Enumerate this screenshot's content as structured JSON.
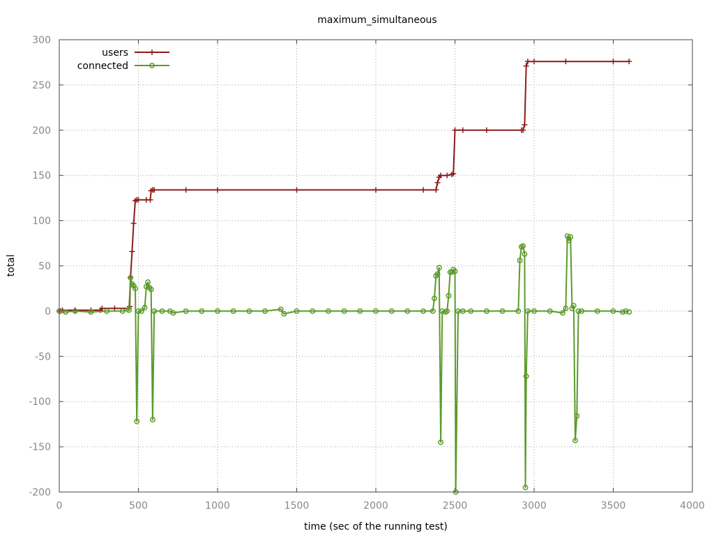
{
  "chart_data": {
    "type": "line",
    "title": "maximum_simultaneous",
    "xlabel": "time (sec of the running test)",
    "ylabel": "total",
    "xlim": [
      0,
      4000
    ],
    "ylim": [
      -200,
      300
    ],
    "x_ticks": [
      0,
      500,
      1000,
      1500,
      2000,
      2500,
      3000,
      3500,
      4000
    ],
    "y_ticks": [
      -200,
      -150,
      -100,
      -50,
      0,
      50,
      100,
      150,
      200,
      250,
      300
    ],
    "grid": true,
    "legend_position": "top-left",
    "series": [
      {
        "name": "users",
        "color": "#8b1a1a",
        "marker": "plus",
        "points": [
          [
            0,
            0
          ],
          [
            10,
            0
          ],
          [
            20,
            1
          ],
          [
            100,
            1
          ],
          [
            200,
            1
          ],
          [
            260,
            1
          ],
          [
            270,
            3
          ],
          [
            350,
            3
          ],
          [
            440,
            3
          ],
          [
            445,
            5
          ],
          [
            450,
            37
          ],
          [
            460,
            66
          ],
          [
            470,
            97
          ],
          [
            480,
            122
          ],
          [
            490,
            123
          ],
          [
            500,
            123
          ],
          [
            550,
            123
          ],
          [
            575,
            123
          ],
          [
            580,
            133
          ],
          [
            590,
            134
          ],
          [
            600,
            134
          ],
          [
            800,
            134
          ],
          [
            1000,
            134
          ],
          [
            1500,
            134
          ],
          [
            2000,
            134
          ],
          [
            2300,
            134
          ],
          [
            2380,
            134
          ],
          [
            2390,
            142
          ],
          [
            2400,
            148
          ],
          [
            2410,
            150
          ],
          [
            2450,
            150
          ],
          [
            2480,
            151
          ],
          [
            2490,
            152
          ],
          [
            2500,
            200
          ],
          [
            2550,
            200
          ],
          [
            2700,
            200
          ],
          [
            2920,
            200
          ],
          [
            2930,
            200
          ],
          [
            2940,
            206
          ],
          [
            2950,
            271
          ],
          [
            2960,
            276
          ],
          [
            3000,
            276
          ],
          [
            3200,
            276
          ],
          [
            3500,
            276
          ],
          [
            3600,
            276
          ]
        ]
      },
      {
        "name": "connected",
        "color": "#5a9a2a",
        "marker": "circle",
        "points": [
          [
            0,
            0
          ],
          [
            40,
            -1
          ],
          [
            100,
            0
          ],
          [
            200,
            -1
          ],
          [
            300,
            0
          ],
          [
            400,
            0
          ],
          [
            440,
            1
          ],
          [
            450,
            37
          ],
          [
            460,
            30
          ],
          [
            470,
            28
          ],
          [
            480,
            25
          ],
          [
            490,
            -122
          ],
          [
            500,
            0
          ],
          [
            520,
            0
          ],
          [
            540,
            4
          ],
          [
            550,
            27
          ],
          [
            560,
            32
          ],
          [
            570,
            26
          ],
          [
            580,
            24
          ],
          [
            590,
            -120
          ],
          [
            600,
            0
          ],
          [
            650,
            0
          ],
          [
            700,
            0
          ],
          [
            720,
            -2
          ],
          [
            800,
            0
          ],
          [
            900,
            0
          ],
          [
            1000,
            0
          ],
          [
            1100,
            0
          ],
          [
            1200,
            0
          ],
          [
            1300,
            0
          ],
          [
            1400,
            2
          ],
          [
            1420,
            -3
          ],
          [
            1500,
            0
          ],
          [
            1600,
            0
          ],
          [
            1700,
            0
          ],
          [
            1800,
            0
          ],
          [
            1900,
            0
          ],
          [
            2000,
            0
          ],
          [
            2100,
            0
          ],
          [
            2200,
            0
          ],
          [
            2300,
            0
          ],
          [
            2360,
            0
          ],
          [
            2370,
            14
          ],
          [
            2380,
            39
          ],
          [
            2390,
            41
          ],
          [
            2400,
            48
          ],
          [
            2410,
            -145
          ],
          [
            2420,
            0
          ],
          [
            2440,
            -1
          ],
          [
            2450,
            0
          ],
          [
            2460,
            17
          ],
          [
            2470,
            43
          ],
          [
            2480,
            43
          ],
          [
            2490,
            46
          ],
          [
            2500,
            44
          ],
          [
            2505,
            -200
          ],
          [
            2520,
            0
          ],
          [
            2550,
            0
          ],
          [
            2600,
            0
          ],
          [
            2700,
            0
          ],
          [
            2800,
            0
          ],
          [
            2900,
            0
          ],
          [
            2910,
            56
          ],
          [
            2920,
            71
          ],
          [
            2930,
            72
          ],
          [
            2940,
            63
          ],
          [
            2945,
            -195
          ],
          [
            2950,
            -72
          ],
          [
            2960,
            0
          ],
          [
            3000,
            0
          ],
          [
            3100,
            0
          ],
          [
            3180,
            -2
          ],
          [
            3200,
            3
          ],
          [
            3210,
            83
          ],
          [
            3220,
            78
          ],
          [
            3230,
            82
          ],
          [
            3240,
            3
          ],
          [
            3250,
            6
          ],
          [
            3260,
            -143
          ],
          [
            3270,
            -116
          ],
          [
            3280,
            0
          ],
          [
            3300,
            0
          ],
          [
            3400,
            0
          ],
          [
            3500,
            0
          ],
          [
            3560,
            -1
          ],
          [
            3580,
            0
          ],
          [
            3600,
            -1
          ]
        ]
      }
    ]
  }
}
